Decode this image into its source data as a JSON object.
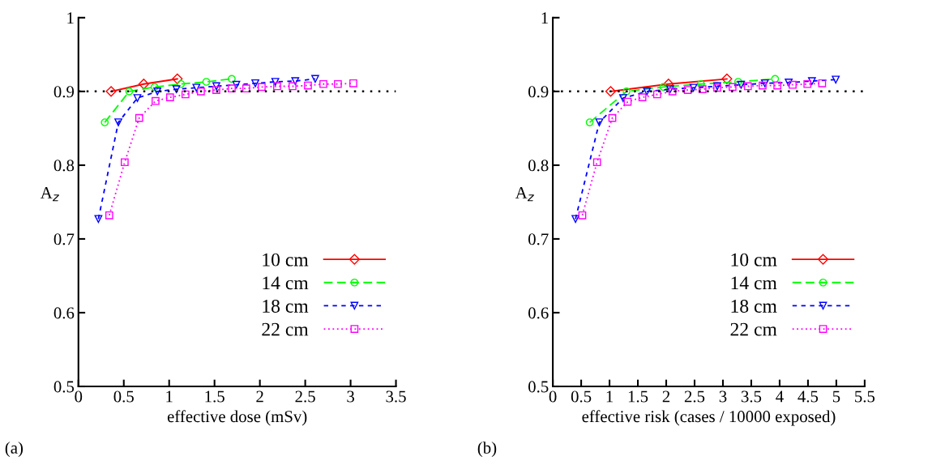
{
  "chart_data": [
    {
      "type": "line",
      "xlabel": "effective dose (mSv)",
      "ylabel": "A$_{z}$",
      "xlim": [
        0,
        3.5
      ],
      "ylim": [
        0.5,
        1
      ],
      "xticks": [
        0,
        0.5,
        1,
        1.5,
        2,
        2.5,
        3,
        3.5
      ],
      "yticks": [
        0.5,
        0.6,
        0.7,
        0.8,
        0.9,
        1
      ],
      "grid": false,
      "legend": "bottom right",
      "annotations": [
        "(a)"
      ],
      "ref_lines": [
        {
          "axis": "y",
          "value": 0.9,
          "color": "#000000",
          "line_style": "dotted"
        }
      ],
      "series": [
        {
          "name": "10 cm",
          "color": "#ff0000",
          "marker": "diamond",
          "line_style": "solid",
          "x": [
            0.36,
            0.72,
            1.09
          ],
          "values": [
            0.9,
            0.91,
            0.917
          ]
        },
        {
          "name": "14 cm",
          "color": "#00ff00",
          "marker": "circle",
          "line_style": "dashed",
          "x": [
            0.29,
            0.56,
            0.84,
            1.13,
            1.41,
            1.69
          ],
          "values": [
            0.858,
            0.9,
            0.906,
            0.91,
            0.913,
            0.917
          ]
        },
        {
          "name": "18 cm",
          "color": "#0000ff",
          "marker": "triangle",
          "line_style": "dashed",
          "x": [
            0.22,
            0.44,
            0.65,
            0.87,
            1.08,
            1.3,
            1.52,
            1.74,
            1.95,
            2.17,
            2.39,
            2.61
          ],
          "values": [
            0.727,
            0.858,
            0.891,
            0.9,
            0.903,
            0.905,
            0.907,
            0.909,
            0.911,
            0.913,
            0.914,
            0.917
          ]
        },
        {
          "name": "22 cm",
          "color": "#ff00ff",
          "marker": "square",
          "line_style": "dotted",
          "x": [
            0.34,
            0.51,
            0.67,
            0.85,
            1.01,
            1.18,
            1.35,
            1.52,
            1.69,
            1.85,
            2.02,
            2.19,
            2.36,
            2.53,
            2.7,
            2.86,
            3.03
          ],
          "values": [
            0.732,
            0.804,
            0.864,
            0.887,
            0.892,
            0.896,
            0.9,
            0.902,
            0.904,
            0.904,
            0.906,
            0.907,
            0.907,
            0.908,
            0.91,
            0.91,
            0.911
          ]
        }
      ]
    },
    {
      "type": "line",
      "xlabel": "effective risk (cases / 10000 exposed)",
      "ylabel": "A$_{z}$",
      "xlim": [
        0,
        5.5
      ],
      "ylim": [
        0.5,
        1
      ],
      "xticks": [
        0,
        0.5,
        1,
        1.5,
        2,
        2.5,
        3,
        3.5,
        4,
        4.5,
        5,
        5.5
      ],
      "yticks": [
        0.5,
        0.6,
        0.7,
        0.8,
        0.9,
        1
      ],
      "grid": false,
      "legend": "bottom right",
      "annotations": [
        "(b)"
      ],
      "ref_lines": [
        {
          "axis": "y",
          "value": 0.9,
          "color": "#000000",
          "line_style": "dotted"
        }
      ],
      "series": [
        {
          "name": "10 cm",
          "color": "#ff0000",
          "marker": "diamond",
          "line_style": "solid",
          "x": [
            1.02,
            2.04,
            3.07
          ],
          "values": [
            0.9,
            0.91,
            0.917
          ]
        },
        {
          "name": "14 cm",
          "color": "#00ff00",
          "marker": "circle",
          "line_style": "dashed",
          "x": [
            0.65,
            1.3,
            1.95,
            2.61,
            3.27,
            3.92
          ],
          "values": [
            0.858,
            0.9,
            0.906,
            0.91,
            0.913,
            0.917
          ]
        },
        {
          "name": "18 cm",
          "color": "#0000ff",
          "marker": "triangle",
          "line_style": "dashed",
          "x": [
            0.4,
            0.82,
            1.24,
            1.66,
            2.07,
            2.48,
            2.9,
            3.32,
            3.74,
            4.16,
            4.57,
            4.99
          ],
          "values": [
            0.727,
            0.858,
            0.891,
            0.9,
            0.903,
            0.905,
            0.907,
            0.909,
            0.911,
            0.912,
            0.914,
            0.916
          ]
        },
        {
          "name": "22 cm",
          "color": "#ff00ff",
          "marker": "square",
          "line_style": "dotted",
          "x": [
            0.52,
            0.78,
            1.05,
            1.32,
            1.58,
            1.84,
            2.11,
            2.38,
            2.64,
            2.9,
            3.17,
            3.44,
            3.7,
            3.96,
            4.23,
            4.49,
            4.75
          ],
          "values": [
            0.732,
            0.804,
            0.864,
            0.886,
            0.892,
            0.896,
            0.9,
            0.902,
            0.903,
            0.905,
            0.906,
            0.907,
            0.908,
            0.908,
            0.909,
            0.91,
            0.911
          ]
        }
      ]
    }
  ]
}
